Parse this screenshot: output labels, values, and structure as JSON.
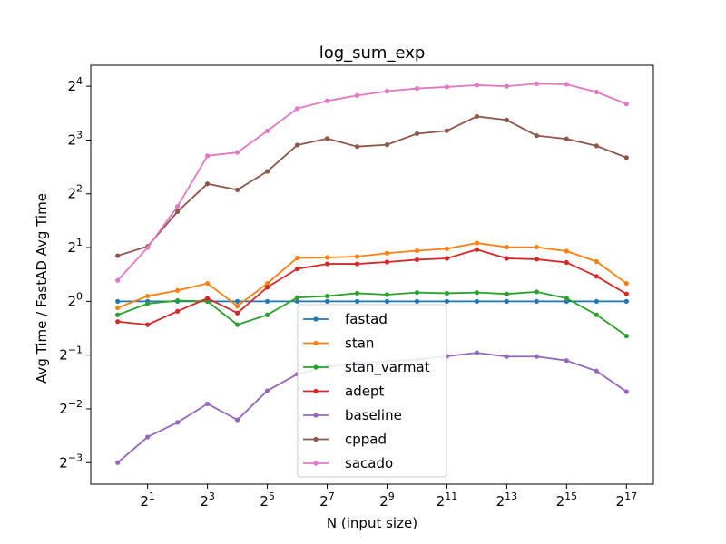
{
  "chart_data": {
    "type": "line",
    "title": "log_sum_exp",
    "xlabel": "N (input size)",
    "ylabel": "Avg Time / FastAD Avg Time",
    "xscale": "log2",
    "yscale": "log2",
    "x": [
      1,
      2,
      4,
      8,
      16,
      32,
      64,
      128,
      256,
      512,
      1024,
      2048,
      4096,
      8192,
      16384,
      32768,
      65536,
      131072
    ],
    "x_ticks": [
      {
        "base": "2",
        "exp": "1",
        "value": 2
      },
      {
        "base": "2",
        "exp": "3",
        "value": 8
      },
      {
        "base": "2",
        "exp": "5",
        "value": 32
      },
      {
        "base": "2",
        "exp": "7",
        "value": 128
      },
      {
        "base": "2",
        "exp": "9",
        "value": 512
      },
      {
        "base": "2",
        "exp": "11",
        "value": 2048
      },
      {
        "base": "2",
        "exp": "13",
        "value": 8192
      },
      {
        "base": "2",
        "exp": "15",
        "value": 32768
      },
      {
        "base": "2",
        "exp": "17",
        "value": 131072
      }
    ],
    "y_ticks": [
      {
        "base": "2",
        "exp": "−3",
        "value": 0.125
      },
      {
        "base": "2",
        "exp": "−2",
        "value": 0.25
      },
      {
        "base": "2",
        "exp": "−1",
        "value": 0.5
      },
      {
        "base": "2",
        "exp": "0",
        "value": 1
      },
      {
        "base": "2",
        "exp": "1",
        "value": 2
      },
      {
        "base": "2",
        "exp": "2",
        "value": 4
      },
      {
        "base": "2",
        "exp": "3",
        "value": 8
      },
      {
        "base": "2",
        "exp": "4",
        "value": 16
      }
    ],
    "xlim_log2": [
      -0.9,
      17.9
    ],
    "ylim_log2": [
      -3.4,
      4.39
    ],
    "grid": false,
    "legend_position": "lower-center",
    "series": [
      {
        "name": "fastad",
        "color": "#1f77b4",
        "values": [
          1,
          1,
          1,
          1,
          1,
          1,
          1,
          1,
          1,
          1,
          1,
          1,
          1,
          1,
          1,
          1,
          1,
          1
        ]
      },
      {
        "name": "stan",
        "color": "#ff7f0e",
        "values": [
          0.92,
          1.07,
          1.15,
          1.26,
          0.94,
          1.26,
          1.75,
          1.76,
          1.78,
          1.86,
          1.92,
          1.97,
          2.12,
          2.01,
          2.01,
          1.91,
          1.67,
          1.26
        ]
      },
      {
        "name": "stan_varmat",
        "color": "#2ca02c",
        "values": [
          0.84,
          0.97,
          1.01,
          1.0,
          0.74,
          0.84,
          1.05,
          1.07,
          1.11,
          1.09,
          1.12,
          1.11,
          1.12,
          1.1,
          1.13,
          1.04,
          0.84,
          0.64
        ]
      },
      {
        "name": "adept",
        "color": "#d62728",
        "values": [
          0.77,
          0.74,
          0.88,
          1.04,
          0.86,
          1.2,
          1.52,
          1.62,
          1.62,
          1.66,
          1.71,
          1.74,
          1.95,
          1.74,
          1.72,
          1.65,
          1.38,
          1.1
        ]
      },
      {
        "name": "baseline",
        "color": "#9467bd",
        "values": [
          0.125,
          0.174,
          0.21,
          0.267,
          0.217,
          0.316,
          0.391,
          0.43,
          0.451,
          0.462,
          0.472,
          0.493,
          0.515,
          0.491,
          0.491,
          0.466,
          0.407,
          0.312
        ]
      },
      {
        "name": "cppad",
        "color": "#8c564b",
        "values": [
          1.8,
          2.03,
          3.18,
          4.55,
          4.21,
          5.34,
          7.5,
          8.15,
          7.35,
          7.53,
          8.68,
          9.02,
          10.84,
          10.35,
          8.46,
          8.11,
          7.42,
          6.38
        ]
      },
      {
        "name": "sacado",
        "color": "#e377c2",
        "values": [
          1.31,
          2.0,
          3.4,
          6.53,
          6.82,
          9.0,
          12.0,
          13.25,
          14.2,
          15.0,
          15.55,
          15.85,
          16.22,
          16.0,
          16.52,
          16.4,
          14.85,
          12.74
        ]
      }
    ]
  }
}
